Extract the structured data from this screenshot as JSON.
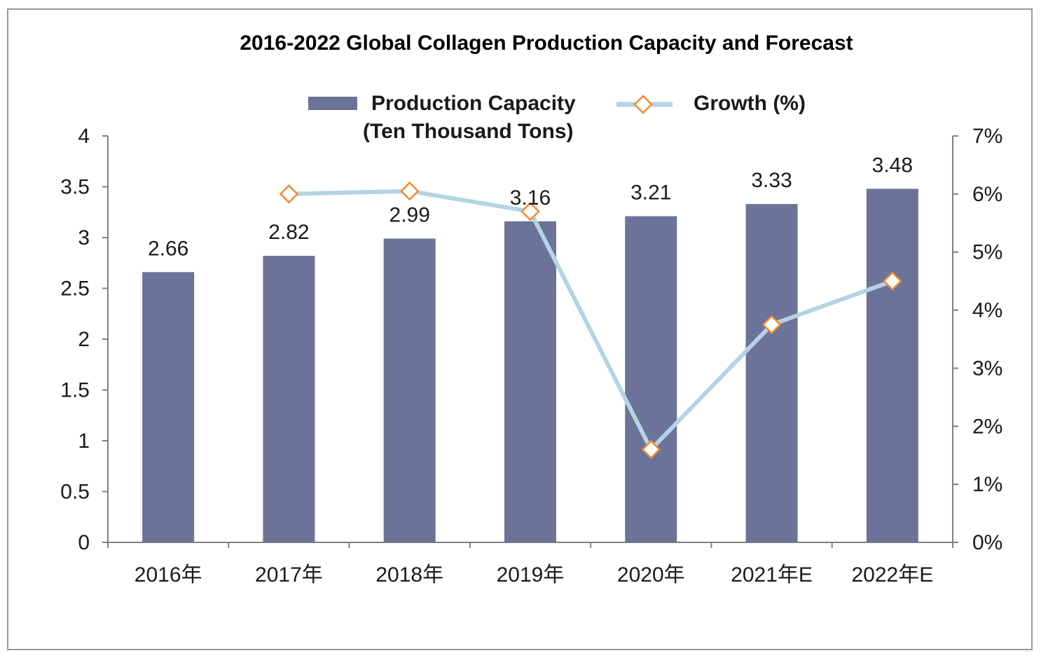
{
  "chart_data": {
    "type": "bar",
    "title": "2016-2022 Global Collagen Production Capacity and Forecast",
    "categories": [
      "2016年",
      "2017年",
      "2018年",
      "2019年",
      "2020年",
      "2021年E",
      "2022年E"
    ],
    "series": [
      {
        "name": "Production Capacity (Ten Thousand Tons)",
        "name_lines": [
          "Production Capacity",
          "(Ten Thousand Tons)"
        ],
        "type": "bar",
        "axis": "left",
        "values": [
          2.66,
          2.82,
          2.99,
          3.16,
          3.21,
          3.33,
          3.48
        ],
        "value_labels": [
          "2.66",
          "2.82",
          "2.99",
          "3.16",
          "3.21",
          "3.33",
          "3.48"
        ],
        "color": "#6b7399"
      },
      {
        "name": "Growth (%)",
        "type": "line",
        "axis": "right",
        "values": [
          null,
          6.0,
          6.05,
          5.7,
          1.6,
          3.75,
          4.5
        ],
        "line_color": "#b5d3e4",
        "marker_color": "#f28b30"
      }
    ],
    "y_left": {
      "ylim": [
        0,
        4
      ],
      "ticks": [
        0,
        0.5,
        1,
        1.5,
        2,
        2.5,
        3,
        3.5,
        4
      ],
      "tick_labels": [
        "0",
        "0.5",
        "1",
        "1.5",
        "2",
        "2.5",
        "3",
        "3.5",
        "4"
      ]
    },
    "y_right": {
      "ylim": [
        0,
        7
      ],
      "ticks": [
        0,
        1,
        2,
        3,
        4,
        5,
        6,
        7
      ],
      "tick_labels": [
        "0%",
        "1%",
        "2%",
        "3%",
        "4%",
        "5%",
        "6%",
        "7%"
      ]
    },
    "xlabel": "",
    "ylabel": "",
    "grid": false,
    "legend_position": "top-center"
  }
}
